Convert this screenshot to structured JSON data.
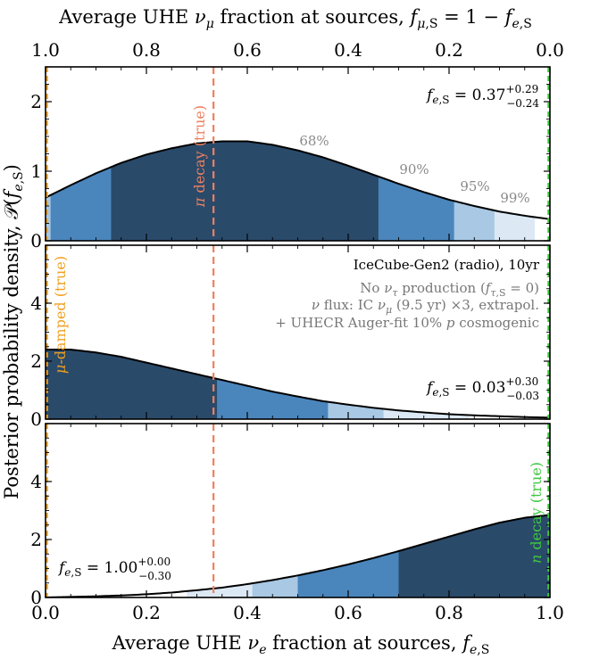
{
  "chart_data": {
    "type": "area",
    "top_axis": {
      "label": "Average UHE ν_μ fraction at sources, f_μ,S = 1 − f_e,S",
      "tick_labels": [
        "1.0",
        "0.8",
        "0.6",
        "0.4",
        "0.2",
        "0.0"
      ]
    },
    "xlabel": "Average UHE ν_e fraction at sources, f_e,S",
    "ylabel": "Posterior probability density, 𝒫(f_e,S)",
    "xlim": [
      0,
      1
    ],
    "x_tick_labels": [
      "0.0",
      "0.2",
      "0.4",
      "0.6",
      "0.8",
      "1.0"
    ],
    "vertical_line": {
      "x": 0.333,
      "style": "dashed",
      "color": "#ee8060"
    },
    "region_colors": [
      "#2a4a6a",
      "#4a86bc",
      "#a8c8e4",
      "#dce9f5"
    ],
    "panels": [
      {
        "ylim": [
          0,
          2.5
        ],
        "yticks": [
          "0",
          "1",
          "2"
        ],
        "result": "f_e,S = 0.37 +0.29 −0.24",
        "true_label": "π decay (true)",
        "true_label_color": "#ee8060",
        "true_x": 0.333,
        "x": [
          0,
          0.05,
          0.1,
          0.15,
          0.2,
          0.25,
          0.3,
          0.35,
          0.4,
          0.45,
          0.5,
          0.55,
          0.6,
          0.65,
          0.7,
          0.75,
          0.8,
          0.85,
          0.9,
          0.95,
          1.0
        ],
        "density": [
          0.62,
          0.8,
          0.97,
          1.12,
          1.24,
          1.33,
          1.4,
          1.43,
          1.43,
          1.38,
          1.3,
          1.2,
          1.08,
          0.95,
          0.82,
          0.7,
          0.59,
          0.5,
          0.42,
          0.36,
          0.31
        ],
        "credible_regions": [
          {
            "label": "68%",
            "range": [
              0.13,
              0.66
            ]
          },
          {
            "label": "90%",
            "range": [
              0.01,
              0.81
            ]
          },
          {
            "label": "95%",
            "range": [
              0.0,
              0.89
            ]
          },
          {
            "label": "99%",
            "range": [
              0.0,
              0.97
            ]
          }
        ]
      },
      {
        "ylim": [
          0,
          6
        ],
        "yticks": [
          "0",
          "2",
          "4"
        ],
        "result": "f_e,S = 0.03 +0.30 −0.03",
        "title": "IceCube-Gen2 (radio), 10yr",
        "notes": [
          "No ν_τ production (f_τ,S = 0)",
          "ν flux: IC ν_μ (9.5 yr) ×3, extrapol.",
          "+ UHECR Auger-fit 10% p cosmogenic"
        ],
        "true_label": "μ-damped (true)",
        "true_label_color": "#f0a020",
        "true_x": 0.0,
        "x": [
          0,
          0.05,
          0.1,
          0.15,
          0.2,
          0.25,
          0.3,
          0.35,
          0.4,
          0.45,
          0.5,
          0.55,
          0.6,
          0.65,
          0.7,
          0.75,
          0.8,
          0.85,
          0.9,
          0.95,
          1.0
        ],
        "density": [
          2.4,
          2.4,
          2.3,
          2.15,
          1.95,
          1.75,
          1.55,
          1.35,
          1.15,
          0.95,
          0.78,
          0.62,
          0.5,
          0.39,
          0.3,
          0.23,
          0.17,
          0.13,
          0.1,
          0.07,
          0.05
        ],
        "credible_regions": [
          {
            "label": "68%",
            "range": [
              0.0,
              0.34
            ]
          },
          {
            "label": "90%",
            "range": [
              0.0,
              0.56
            ]
          },
          {
            "label": "95%",
            "range": [
              0.0,
              0.67
            ]
          },
          {
            "label": "99%",
            "range": [
              0.0,
              0.84
            ]
          }
        ]
      },
      {
        "ylim": [
          0,
          6
        ],
        "yticks": [
          "0",
          "2",
          "4"
        ],
        "result": "f_e,S = 1.00 +0.00 −0.30",
        "true_label": "n decay (true)",
        "true_label_color": "#40c840",
        "true_x": 1.0,
        "x": [
          0,
          0.05,
          0.1,
          0.15,
          0.2,
          0.25,
          0.3,
          0.35,
          0.4,
          0.45,
          0.5,
          0.55,
          0.6,
          0.65,
          0.7,
          0.75,
          0.8,
          0.85,
          0.9,
          0.95,
          1.0
        ],
        "density": [
          0.0,
          0.02,
          0.04,
          0.07,
          0.11,
          0.17,
          0.25,
          0.34,
          0.46,
          0.6,
          0.76,
          0.94,
          1.14,
          1.36,
          1.6,
          1.85,
          2.1,
          2.35,
          2.58,
          2.75,
          2.85
        ],
        "credible_regions": [
          {
            "label": "68%",
            "range": [
              0.7,
              1.0
            ]
          },
          {
            "label": "90%",
            "range": [
              0.5,
              1.0
            ]
          },
          {
            "label": "95%",
            "range": [
              0.41,
              1.0
            ]
          },
          {
            "label": "99%",
            "range": [
              0.28,
              1.0
            ]
          }
        ]
      }
    ]
  }
}
